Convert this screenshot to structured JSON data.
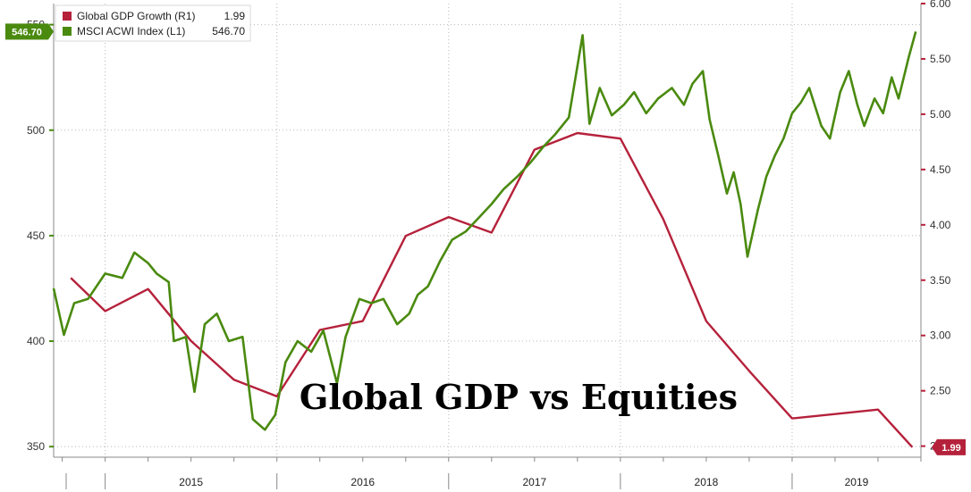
{
  "chart_data": {
    "type": "line",
    "title": "Global GDP vs Equities",
    "x_tick_labels": [
      "2015",
      "2016",
      "2017",
      "2018",
      "2019"
    ],
    "y_left": {
      "ticks": [
        "350",
        "400",
        "450",
        "500",
        "550"
      ],
      "range": [
        345,
        560
      ]
    },
    "y_right": {
      "ticks": [
        "2.00",
        "2.50",
        "3.00",
        "3.50",
        "4.00",
        "4.50",
        "5.00",
        "5.50",
        "6.00"
      ],
      "range": [
        1.9,
        6.0
      ]
    },
    "grid": true,
    "legend_position": "top-left",
    "series": [
      {
        "name": "Global GDP Growth (R1)",
        "last_value": "1.99",
        "axis": "right",
        "color": "#b5213b",
        "points": [
          [
            2014.8,
            3.52
          ],
          [
            2015.0,
            3.22
          ],
          [
            2015.25,
            3.42
          ],
          [
            2015.5,
            2.95
          ],
          [
            2015.75,
            2.6
          ],
          [
            2016.0,
            2.45
          ],
          [
            2016.25,
            3.05
          ],
          [
            2016.5,
            3.13
          ],
          [
            2016.75,
            3.9
          ],
          [
            2017.0,
            4.07
          ],
          [
            2017.25,
            3.93
          ],
          [
            2017.5,
            4.68
          ],
          [
            2017.75,
            4.83
          ],
          [
            2018.0,
            4.78
          ],
          [
            2018.25,
            4.05
          ],
          [
            2018.5,
            3.13
          ],
          [
            2018.75,
            2.68
          ],
          [
            2019.0,
            2.25
          ],
          [
            2019.25,
            2.29
          ],
          [
            2019.5,
            2.33
          ],
          [
            2019.7,
            1.99
          ]
        ]
      },
      {
        "name": "MSCI ACWI Index (L1)",
        "last_value": "546.70",
        "axis": "left",
        "color": "#4a8a0f",
        "points": [
          [
            2014.7,
            425
          ],
          [
            2014.76,
            403
          ],
          [
            2014.82,
            418
          ],
          [
            2014.9,
            420
          ],
          [
            2015.0,
            432
          ],
          [
            2015.1,
            430
          ],
          [
            2015.17,
            442
          ],
          [
            2015.25,
            437
          ],
          [
            2015.3,
            432
          ],
          [
            2015.37,
            428
          ],
          [
            2015.4,
            400
          ],
          [
            2015.47,
            402
          ],
          [
            2015.52,
            376
          ],
          [
            2015.58,
            408
          ],
          [
            2015.65,
            413
          ],
          [
            2015.72,
            400
          ],
          [
            2015.8,
            402
          ],
          [
            2015.86,
            363
          ],
          [
            2015.93,
            358
          ],
          [
            2015.99,
            365
          ],
          [
            2016.05,
            390
          ],
          [
            2016.12,
            400
          ],
          [
            2016.2,
            395
          ],
          [
            2016.27,
            405
          ],
          [
            2016.35,
            380
          ],
          [
            2016.4,
            402
          ],
          [
            2016.48,
            420
          ],
          [
            2016.55,
            418
          ],
          [
            2016.62,
            420
          ],
          [
            2016.7,
            408
          ],
          [
            2016.77,
            413
          ],
          [
            2016.82,
            422
          ],
          [
            2016.88,
            426
          ],
          [
            2016.95,
            438
          ],
          [
            2017.02,
            448
          ],
          [
            2017.1,
            452
          ],
          [
            2017.17,
            458
          ],
          [
            2017.25,
            465
          ],
          [
            2017.32,
            472
          ],
          [
            2017.4,
            478
          ],
          [
            2017.48,
            485
          ],
          [
            2017.55,
            492
          ],
          [
            2017.62,
            498
          ],
          [
            2017.7,
            506
          ],
          [
            2017.78,
            545
          ],
          [
            2017.82,
            503
          ],
          [
            2017.88,
            520
          ],
          [
            2017.95,
            507
          ],
          [
            2018.02,
            512
          ],
          [
            2018.08,
            518
          ],
          [
            2018.15,
            508
          ],
          [
            2018.22,
            515
          ],
          [
            2018.3,
            520
          ],
          [
            2018.37,
            512
          ],
          [
            2018.42,
            522
          ],
          [
            2018.48,
            528
          ],
          [
            2018.52,
            505
          ],
          [
            2018.57,
            488
          ],
          [
            2018.62,
            470
          ],
          [
            2018.66,
            480
          ],
          [
            2018.7,
            465
          ],
          [
            2018.74,
            440
          ],
          [
            2018.8,
            462
          ],
          [
            2018.85,
            478
          ],
          [
            2018.9,
            488
          ],
          [
            2018.95,
            496
          ],
          [
            2019.0,
            508
          ],
          [
            2019.05,
            513
          ],
          [
            2019.1,
            520
          ],
          [
            2019.17,
            502
          ],
          [
            2019.22,
            496
          ],
          [
            2019.28,
            518
          ],
          [
            2019.33,
            528
          ],
          [
            2019.38,
            512
          ],
          [
            2019.42,
            502
          ],
          [
            2019.48,
            515
          ],
          [
            2019.53,
            508
          ],
          [
            2019.58,
            525
          ],
          [
            2019.62,
            515
          ],
          [
            2019.68,
            535
          ],
          [
            2019.72,
            546.7
          ]
        ]
      }
    ],
    "overlay_title": "Global GDP vs Equities"
  }
}
